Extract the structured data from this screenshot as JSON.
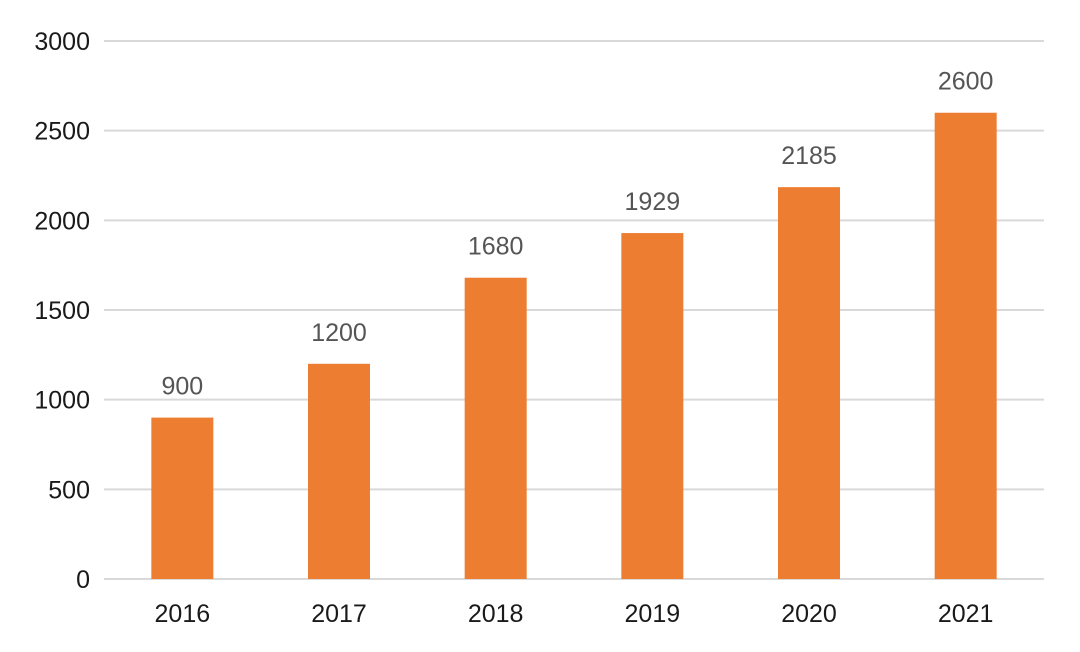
{
  "chart_data": {
    "type": "bar",
    "title": "",
    "xlabel": "",
    "ylabel": "",
    "categories": [
      "2016",
      "2017",
      "2018",
      "2019",
      "2020",
      "2021"
    ],
    "values": [
      900,
      1200,
      1680,
      1929,
      2185,
      2600
    ],
    "data_labels": [
      "900",
      "1200",
      "1680",
      "1929",
      "2185",
      "2600"
    ],
    "ylim": [
      0,
      3000
    ],
    "yticks": [
      0,
      500,
      1000,
      1500,
      2000,
      2500,
      3000
    ],
    "ytick_labels": [
      "0",
      "500",
      "1000",
      "1500",
      "2000",
      "2500",
      "3000"
    ],
    "grid": true,
    "legend": "none",
    "bar_color": "#ED7D31"
  }
}
